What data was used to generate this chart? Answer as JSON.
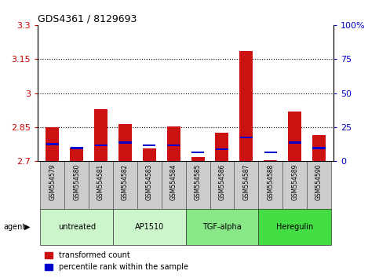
{
  "title": "GDS4361 / 8129693",
  "samples": [
    "GSM554579",
    "GSM554580",
    "GSM554581",
    "GSM554582",
    "GSM554583",
    "GSM554584",
    "GSM554585",
    "GSM554586",
    "GSM554587",
    "GSM554588",
    "GSM554589",
    "GSM554590"
  ],
  "red_values": [
    2.85,
    2.76,
    2.93,
    2.865,
    2.755,
    2.855,
    2.72,
    2.825,
    3.185,
    2.705,
    2.92,
    2.815
  ],
  "blue_pct": [
    12,
    9,
    11,
    13,
    11,
    11,
    6,
    8,
    17,
    6,
    13,
    9
  ],
  "base": 2.7,
  "ylim_left": [
    2.7,
    3.3
  ],
  "ylim_right": [
    0,
    100
  ],
  "yticks_left": [
    2.7,
    2.85,
    3.0,
    3.15,
    3.3
  ],
  "ytick_labels_left": [
    "2.7",
    "2.85",
    "3",
    "3.15",
    "3.3"
  ],
  "yticks_right": [
    0,
    25,
    50,
    75,
    100
  ],
  "ytick_labels_right": [
    "0",
    "25",
    "50",
    "75",
    "100%"
  ],
  "hlines": [
    2.85,
    3.0,
    3.15
  ],
  "groups": [
    {
      "label": "untreated",
      "start": 0,
      "end": 3,
      "color": "#ccf5cc"
    },
    {
      "label": "AP1510",
      "start": 3,
      "end": 6,
      "color": "#ccf5cc"
    },
    {
      "label": "TGF-alpha",
      "start": 6,
      "end": 9,
      "color": "#88e888"
    },
    {
      "label": "Heregulin",
      "start": 9,
      "end": 12,
      "color": "#44dd44"
    }
  ],
  "agent_label": "agent",
  "bar_color": "#cc1111",
  "dot_color": "#0000cc",
  "sample_bg": "#cccccc",
  "bar_width": 0.55,
  "legend_red": "transformed count",
  "legend_blue": "percentile rank within the sample",
  "left_tick_color": "#cc0000",
  "right_tick_color": "#0000cc"
}
